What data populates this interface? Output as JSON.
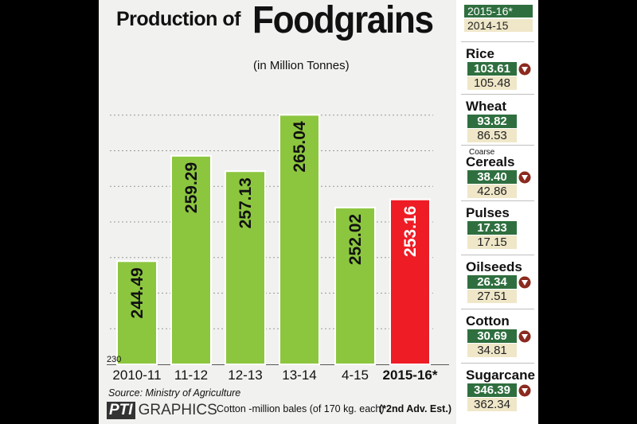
{
  "title": {
    "prefix": "Production of",
    "main": "Foodgrains"
  },
  "subtitle": "(in Million Tonnes)",
  "chart_data": {
    "type": "bar",
    "categories": [
      "2010-11",
      "11-12",
      "12-13",
      "13-14",
      "4-15",
      "2015-16*"
    ],
    "values": [
      244.49,
      259.29,
      257.13,
      265.04,
      252.02,
      253.16
    ],
    "value_labels": [
      "244.49",
      "259.29",
      "257.13",
      "265.04",
      "252.02",
      "253.16"
    ],
    "highlight_index": 5,
    "ylim": [
      230,
      270
    ],
    "y_min_label": "230",
    "bar_colors": {
      "default": "#8cc63f",
      "highlight": "#ee1c25"
    },
    "grid": true
  },
  "source": "Source: Ministry of Agriculture",
  "logo": {
    "pti": "PTI",
    "graphics": "GRAPHICS"
  },
  "notes": {
    "cotton": "Cotton -million bales (of 170 kg. each)",
    "estimate": "(*2nd Adv. Est.)"
  },
  "side_panel": {
    "legend": {
      "current": "2015-16*",
      "previous": "2014-15"
    },
    "items": [
      {
        "name": "Rice",
        "note": "",
        "current": "103.61",
        "previous": "105.48",
        "down": true
      },
      {
        "name": "Wheat",
        "note": "",
        "current": "93.82",
        "previous": "86.53",
        "down": false
      },
      {
        "name": "Cereals",
        "note": "Coarse",
        "current": "38.40",
        "previous": "42.86",
        "down": true
      },
      {
        "name": "Pulses",
        "note": "",
        "current": "17.33",
        "previous": "17.15",
        "down": false
      },
      {
        "name": "Oilseeds",
        "note": "",
        "current": "26.34",
        "previous": "27.51",
        "down": true
      },
      {
        "name": "Cotton",
        "note": "",
        "current": "30.69",
        "previous": "34.81",
        "down": true
      },
      {
        "name": "Sugarcane",
        "note": "",
        "current": "346.39",
        "previous": "362.34",
        "down": true
      }
    ],
    "colors": {
      "current": "#2f6f3f",
      "previous": "#efe7c8",
      "down_arrow": "#8b2a1f"
    }
  }
}
